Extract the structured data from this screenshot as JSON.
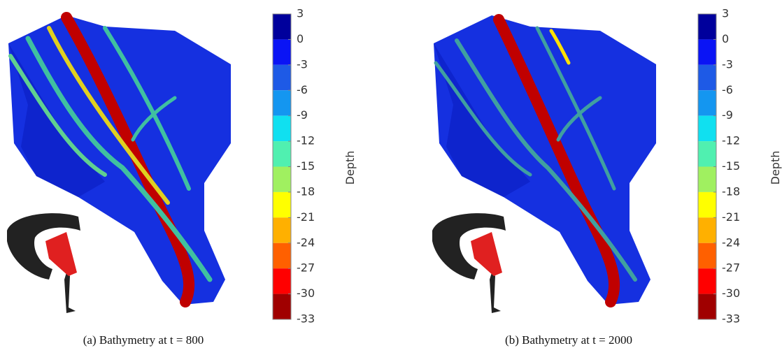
{
  "chart_data": [
    {
      "type": "colormap",
      "title": "(a) Bathymetry at t = 800",
      "colorbar_label": "Depth",
      "clim": [
        3,
        -33
      ],
      "cticks": [
        3,
        0,
        -3,
        -6,
        -9,
        -12,
        -15,
        -18,
        -21,
        -24,
        -27,
        -30,
        -33
      ],
      "colors": [
        "#00009c",
        "#0a14f5",
        "#1e5ae6",
        "#1496f0",
        "#10e0f0",
        "#50f0b0",
        "#a0f060",
        "#ffff00",
        "#ffb000",
        "#ff6000",
        "#ff0000",
        "#a00000"
      ]
    },
    {
      "type": "colormap",
      "title": "(b) Bathymetry at t = 2000",
      "colorbar_label": "Depth",
      "clim": [
        3,
        -33
      ],
      "cticks": [
        3,
        0,
        -3,
        -6,
        -9,
        -12,
        -15,
        -18,
        -21,
        -24,
        -27,
        -30,
        -33
      ],
      "colors": [
        "#00009c",
        "#0a14f5",
        "#1e5ae6",
        "#1496f0",
        "#10e0f0",
        "#50f0b0",
        "#a0f060",
        "#ffff00",
        "#ffb000",
        "#ff6000",
        "#ff0000",
        "#a00000"
      ]
    }
  ]
}
